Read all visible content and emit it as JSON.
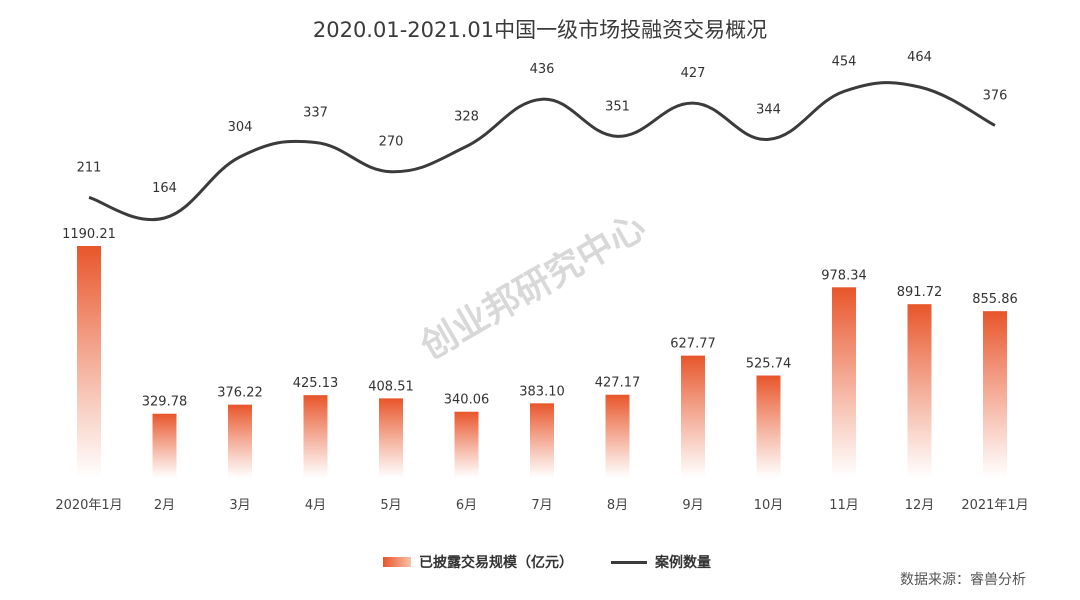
{
  "title": "2020.01-2021.01中国一级市场投融资交易概况",
  "watermark": "创业邦研究中心",
  "legend": {
    "bar_label": "已披露交易规模（亿元）",
    "line_label": "案例数量"
  },
  "source": "数据来源：睿兽分析",
  "colors": {
    "bar_top": "#e8552a",
    "bar_bottom": "#ffffff",
    "line": "#3b3b3b"
  },
  "chart_data": {
    "type": "bar",
    "categories": [
      "2020年1月",
      "2月",
      "3月",
      "4月",
      "5月",
      "6月",
      "7月",
      "8月",
      "9月",
      "10月",
      "11月",
      "12月",
      "2021年1月"
    ],
    "series": [
      {
        "name": "已披露交易规模（亿元）",
        "type": "bar",
        "values": [
          1190.21,
          329.78,
          376.22,
          425.13,
          408.51,
          340.06,
          383.1,
          427.17,
          627.77,
          525.74,
          978.34,
          891.72,
          855.86
        ],
        "labels": [
          "1190.21",
          "329.78",
          "376.22",
          "425.13",
          "408.51",
          "340.06",
          "383.10",
          "427.17",
          "627.77",
          "525.74",
          "978.34",
          "891.72",
          "855.86"
        ]
      },
      {
        "name": "案例数量",
        "type": "line",
        "values": [
          211,
          164,
          304,
          337,
          270,
          328,
          436,
          351,
          427,
          344,
          454,
          464,
          376
        ],
        "labels": [
          "211",
          "164",
          "304",
          "337",
          "270",
          "328",
          "436",
          "351",
          "427",
          "344",
          "454",
          "464",
          "376"
        ]
      }
    ],
    "title": "2020.01-2021.01中国一级市场投融资交易概况",
    "xlabel": "",
    "ylabel": "",
    "grid": false,
    "legend_position": "bottom"
  }
}
